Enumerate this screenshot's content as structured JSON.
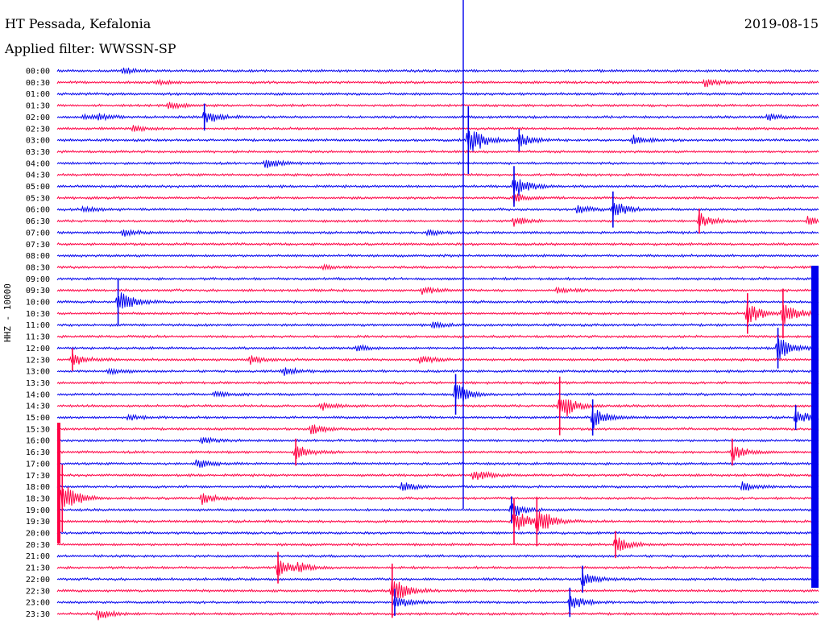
{
  "header": {
    "station": "HT Pessada, Kefalonia",
    "date": "2019-08-15",
    "filter": "Applied filter: WWSSN-SP",
    "channel": "HHZ - 10000"
  },
  "colors": {
    "trace_a": "#0000ee",
    "trace_b": "#ff0044"
  },
  "chart_data": {
    "type": "line",
    "title": "HT Pessada, Kefalonia",
    "ylabel": "HHZ - 10000",
    "row_labels": [
      "00:00",
      "00:30",
      "01:00",
      "01:30",
      "02:00",
      "02:30",
      "03:00",
      "03:30",
      "04:00",
      "04:30",
      "05:00",
      "05:30",
      "06:00",
      "06:30",
      "07:00",
      "07:30",
      "08:00",
      "08:30",
      "09:00",
      "09:30",
      "10:00",
      "10:30",
      "11:00",
      "11:30",
      "12:00",
      "12:30",
      "13:00",
      "13:30",
      "14:00",
      "14:30",
      "15:00",
      "15:30",
      "16:00",
      "16:30",
      "17:00",
      "17:30",
      "18:00",
      "18:30",
      "19:00",
      "19:30",
      "20:00",
      "20:30",
      "21:00",
      "21:30",
      "22:00",
      "22:30",
      "23:00",
      "23:30"
    ],
    "minutes_per_row": 30,
    "grid": false,
    "events": [
      {
        "row": 0,
        "minute": 2.6,
        "amp": 0.4
      },
      {
        "row": 1,
        "minute": 3.9,
        "amp": 0.3
      },
      {
        "row": 1,
        "minute": 25.5,
        "amp": 0.6
      },
      {
        "row": 3,
        "minute": 4.4,
        "amp": 0.5
      },
      {
        "row": 4,
        "minute": 1.0,
        "amp": 0.3
      },
      {
        "row": 4,
        "minute": 1.6,
        "amp": 0.4
      },
      {
        "row": 4,
        "minute": 5.8,
        "amp": 1.2
      },
      {
        "row": 4,
        "minute": 28.0,
        "amp": 0.5
      },
      {
        "row": 5,
        "minute": 3.0,
        "amp": 0.4
      },
      {
        "row": 6,
        "minute": 16.2,
        "amp": 3.0
      },
      {
        "row": 6,
        "minute": 18.2,
        "amp": 1.0
      },
      {
        "row": 6,
        "minute": 22.7,
        "amp": 0.7
      },
      {
        "row": 8,
        "minute": 8.2,
        "amp": 0.8
      },
      {
        "row": 10,
        "minute": 18.0,
        "amp": 1.8
      },
      {
        "row": 11,
        "minute": 18.0,
        "amp": 0.8
      },
      {
        "row": 12,
        "minute": 1.0,
        "amp": 0.4
      },
      {
        "row": 12,
        "minute": 20.5,
        "amp": 0.6
      },
      {
        "row": 12,
        "minute": 21.9,
        "amp": 1.6
      },
      {
        "row": 13,
        "minute": 18.0,
        "amp": 0.6
      },
      {
        "row": 13,
        "minute": 25.3,
        "amp": 1.1
      },
      {
        "row": 13,
        "minute": 29.6,
        "amp": 0.8
      },
      {
        "row": 14,
        "minute": 2.6,
        "amp": 0.5
      },
      {
        "row": 14,
        "minute": 14.6,
        "amp": 0.5
      },
      {
        "row": 17,
        "minute": 10.5,
        "amp": 0.3
      },
      {
        "row": 19,
        "minute": 14.4,
        "amp": 0.6
      },
      {
        "row": 19,
        "minute": 19.7,
        "amp": 0.4
      },
      {
        "row": 20,
        "minute": 2.4,
        "amp": 2.0
      },
      {
        "row": 21,
        "minute": 27.2,
        "amp": 1.8
      },
      {
        "row": 21,
        "minute": 28.6,
        "amp": 2.2
      },
      {
        "row": 22,
        "minute": 14.8,
        "amp": 0.4
      },
      {
        "row": 24,
        "minute": 11.8,
        "amp": 0.4
      },
      {
        "row": 24,
        "minute": 28.4,
        "amp": 1.8
      },
      {
        "row": 25,
        "minute": 0.6,
        "amp": 1.0
      },
      {
        "row": 25,
        "minute": 7.6,
        "amp": 0.6
      },
      {
        "row": 25,
        "minute": 14.3,
        "amp": 0.6
      },
      {
        "row": 26,
        "minute": 2.0,
        "amp": 0.4
      },
      {
        "row": 26,
        "minute": 8.9,
        "amp": 0.6
      },
      {
        "row": 28,
        "minute": 6.2,
        "amp": 0.5
      },
      {
        "row": 28,
        "minute": 15.7,
        "amp": 1.8
      },
      {
        "row": 29,
        "minute": 10.4,
        "amp": 0.6
      },
      {
        "row": 29,
        "minute": 19.8,
        "amp": 2.6
      },
      {
        "row": 30,
        "minute": 2.8,
        "amp": 0.4
      },
      {
        "row": 30,
        "minute": 21.1,
        "amp": 1.6
      },
      {
        "row": 30,
        "minute": 29.1,
        "amp": 1.1
      },
      {
        "row": 31,
        "minute": 10.0,
        "amp": 0.8
      },
      {
        "row": 32,
        "minute": 5.7,
        "amp": 0.4
      },
      {
        "row": 33,
        "minute": 9.4,
        "amp": 1.2
      },
      {
        "row": 33,
        "minute": 26.6,
        "amp": 1.2
      },
      {
        "row": 34,
        "minute": 5.5,
        "amp": 0.6
      },
      {
        "row": 35,
        "minute": 16.4,
        "amp": 0.9
      },
      {
        "row": 36,
        "minute": 13.6,
        "amp": 0.7
      },
      {
        "row": 36,
        "minute": 27.0,
        "amp": 0.6
      },
      {
        "row": 37,
        "minute": 0.2,
        "amp": 3.0
      },
      {
        "row": 37,
        "minute": 5.7,
        "amp": 0.8
      },
      {
        "row": 38,
        "minute": 17.9,
        "amp": 1.2
      },
      {
        "row": 39,
        "minute": 18.0,
        "amp": 2.0
      },
      {
        "row": 39,
        "minute": 18.9,
        "amp": 2.2
      },
      {
        "row": 41,
        "minute": 22.0,
        "amp": 1.2
      },
      {
        "row": 43,
        "minute": 8.7,
        "amp": 1.4
      },
      {
        "row": 43,
        "minute": 9.5,
        "amp": 0.6
      },
      {
        "row": 44,
        "minute": 20.7,
        "amp": 1.2
      },
      {
        "row": 45,
        "minute": 13.2,
        "amp": 2.4
      },
      {
        "row": 46,
        "minute": 13.3,
        "amp": 1.2
      },
      {
        "row": 46,
        "minute": 20.2,
        "amp": 1.3
      },
      {
        "row": 47,
        "minute": 1.6,
        "amp": 0.8
      }
    ]
  }
}
